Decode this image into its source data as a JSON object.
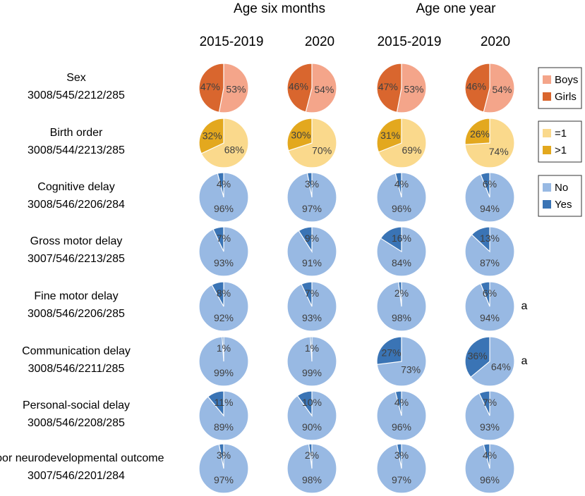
{
  "chart_data": {
    "type": "pie",
    "title": "",
    "group_headers": [
      "Age six months",
      "Age one year"
    ],
    "columns": [
      "2015-2019",
      "2020",
      "2015-2019",
      "2020"
    ],
    "rows": [
      {
        "label": "Sex",
        "counts": "3008/545/2212/285",
        "categories": [
          "Boys",
          "Girls"
        ],
        "values": [
          [
            53,
            47
          ],
          [
            54,
            46
          ],
          [
            53,
            47
          ],
          [
            54,
            46
          ]
        ],
        "annotation": ""
      },
      {
        "label": "Birth order",
        "counts": "3008/544/2213/285",
        "categories": [
          "=1",
          ">1"
        ],
        "values": [
          [
            68,
            32
          ],
          [
            70,
            30
          ],
          [
            69,
            31
          ],
          [
            74,
            26
          ]
        ],
        "annotation": ""
      },
      {
        "label": "Cognitive delay",
        "counts": "3008/546/2206/284",
        "categories": [
          "No",
          "Yes"
        ],
        "values": [
          [
            96,
            4
          ],
          [
            97,
            3
          ],
          [
            96,
            4
          ],
          [
            94,
            6
          ]
        ],
        "annotation": ""
      },
      {
        "label": "Gross motor delay",
        "counts": "3007/546/2213/285",
        "categories": [
          "No",
          "Yes"
        ],
        "values": [
          [
            93,
            7
          ],
          [
            91,
            9
          ],
          [
            84,
            16
          ],
          [
            87,
            13
          ]
        ],
        "annotation": ""
      },
      {
        "label": "Fine motor delay",
        "counts": "3008/546/2206/285",
        "categories": [
          "No",
          "Yes"
        ],
        "values": [
          [
            92,
            8
          ],
          [
            93,
            7
          ],
          [
            98,
            2
          ],
          [
            94,
            6
          ]
        ],
        "annotation": "a"
      },
      {
        "label": "Communication delay",
        "counts": "3008/546/2211/285",
        "categories": [
          "No",
          "Yes"
        ],
        "values": [
          [
            99,
            1
          ],
          [
            99,
            1
          ],
          [
            73,
            27
          ],
          [
            64,
            36
          ]
        ],
        "annotation": "a"
      },
      {
        "label": "Personal-social delay",
        "counts": "3008/546/2208/285",
        "categories": [
          "No",
          "Yes"
        ],
        "values": [
          [
            89,
            11
          ],
          [
            90,
            10
          ],
          [
            96,
            4
          ],
          [
            93,
            7
          ]
        ],
        "annotation": ""
      },
      {
        "label": "Poor neurodevelopmental outcome",
        "counts": "3007/546/2201/284",
        "categories": [
          "No",
          "Yes"
        ],
        "values": [
          [
            97,
            3
          ],
          [
            98,
            2
          ],
          [
            97,
            3
          ],
          [
            96,
            4
          ]
        ],
        "annotation": ""
      }
    ],
    "legends": [
      {
        "items": [
          {
            "label": "Boys",
            "color": "#F4A58A"
          },
          {
            "label": "Girls",
            "color": "#D9662E"
          }
        ]
      },
      {
        "items": [
          {
            "label": "=1",
            "color": "#FAD98C"
          },
          {
            "label": ">1",
            "color": "#E3A81E"
          }
        ]
      },
      {
        "items": [
          {
            "label": "No",
            "color": "#98B9E3"
          },
          {
            "label": "Yes",
            "color": "#3A74B5"
          }
        ]
      }
    ],
    "row_colors": [
      [
        "#F4A58A",
        "#D9662E"
      ],
      [
        "#FAD98C",
        "#E3A81E"
      ],
      [
        "#98B9E3",
        "#3A74B5"
      ],
      [
        "#98B9E3",
        "#3A74B5"
      ],
      [
        "#98B9E3",
        "#3A74B5"
      ],
      [
        "#98B9E3",
        "#3A74B5"
      ],
      [
        "#98B9E3",
        "#3A74B5"
      ],
      [
        "#98B9E3",
        "#3A74B5"
      ]
    ]
  }
}
